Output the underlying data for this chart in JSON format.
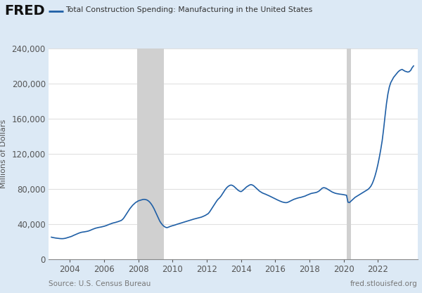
{
  "title": "Total Construction Spending: Manufacturing in the United States",
  "ylabel": "Millions of Dollars",
  "source_left": "Source: U.S. Census Bureau",
  "source_right": "fred.stlouisfed.org",
  "line_color": "#1f5fa6",
  "line_width": 1.2,
  "bg_outer": "#dce9f5",
  "bg_plot": "#ffffff",
  "recession_color": "#d0d0d0",
  "recession_alpha": 1.0,
  "ylim": [
    0,
    240000
  ],
  "yticks": [
    0,
    40000,
    80000,
    120000,
    160000,
    200000,
    240000
  ],
  "recession_bands": [
    [
      2007.917,
      2009.5
    ]
  ],
  "recession_bands2": [
    [
      2020.167,
      2020.417
    ]
  ],
  "xmin": 2002.75,
  "xmax": 2024.33,
  "xticks": [
    2004,
    2006,
    2008,
    2010,
    2012,
    2014,
    2016,
    2018,
    2020,
    2022
  ],
  "fred_text": "FRED",
  "data": {
    "dates": [
      2002.917,
      2003.0,
      2003.083,
      2003.167,
      2003.25,
      2003.333,
      2003.417,
      2003.5,
      2003.583,
      2003.667,
      2003.75,
      2003.833,
      2003.917,
      2004.0,
      2004.083,
      2004.167,
      2004.25,
      2004.333,
      2004.417,
      2004.5,
      2004.583,
      2004.667,
      2004.75,
      2004.833,
      2004.917,
      2005.0,
      2005.083,
      2005.167,
      2005.25,
      2005.333,
      2005.417,
      2005.5,
      2005.583,
      2005.667,
      2005.75,
      2005.833,
      2005.917,
      2006.0,
      2006.083,
      2006.167,
      2006.25,
      2006.333,
      2006.417,
      2006.5,
      2006.583,
      2006.667,
      2006.75,
      2006.833,
      2006.917,
      2007.0,
      2007.083,
      2007.167,
      2007.25,
      2007.333,
      2007.417,
      2007.5,
      2007.583,
      2007.667,
      2007.75,
      2007.833,
      2007.917,
      2008.0,
      2008.083,
      2008.167,
      2008.25,
      2008.333,
      2008.417,
      2008.5,
      2008.583,
      2008.667,
      2008.75,
      2008.833,
      2008.917,
      2009.0,
      2009.083,
      2009.167,
      2009.25,
      2009.333,
      2009.417,
      2009.5,
      2009.583,
      2009.667,
      2009.75,
      2009.833,
      2009.917,
      2010.0,
      2010.083,
      2010.167,
      2010.25,
      2010.333,
      2010.417,
      2010.5,
      2010.583,
      2010.667,
      2010.75,
      2010.833,
      2010.917,
      2011.0,
      2011.083,
      2011.167,
      2011.25,
      2011.333,
      2011.417,
      2011.5,
      2011.583,
      2011.667,
      2011.75,
      2011.833,
      2011.917,
      2012.0,
      2012.083,
      2012.167,
      2012.25,
      2012.333,
      2012.417,
      2012.5,
      2012.583,
      2012.667,
      2012.75,
      2012.833,
      2012.917,
      2013.0,
      2013.083,
      2013.167,
      2013.25,
      2013.333,
      2013.417,
      2013.5,
      2013.583,
      2013.667,
      2013.75,
      2013.833,
      2013.917,
      2014.0,
      2014.083,
      2014.167,
      2014.25,
      2014.333,
      2014.417,
      2014.5,
      2014.583,
      2014.667,
      2014.75,
      2014.833,
      2014.917,
      2015.0,
      2015.083,
      2015.167,
      2015.25,
      2015.333,
      2015.417,
      2015.5,
      2015.583,
      2015.667,
      2015.75,
      2015.833,
      2015.917,
      2016.0,
      2016.083,
      2016.167,
      2016.25,
      2016.333,
      2016.417,
      2016.5,
      2016.583,
      2016.667,
      2016.75,
      2016.833,
      2016.917,
      2017.0,
      2017.083,
      2017.167,
      2017.25,
      2017.333,
      2017.417,
      2017.5,
      2017.583,
      2017.667,
      2017.75,
      2017.833,
      2017.917,
      2018.0,
      2018.083,
      2018.167,
      2018.25,
      2018.333,
      2018.417,
      2018.5,
      2018.583,
      2018.667,
      2018.75,
      2018.833,
      2018.917,
      2019.0,
      2019.083,
      2019.167,
      2019.25,
      2019.333,
      2019.417,
      2019.5,
      2019.583,
      2019.667,
      2019.75,
      2019.833,
      2019.917,
      2020.0,
      2020.083,
      2020.167,
      2020.25,
      2020.333,
      2020.417,
      2020.5,
      2020.583,
      2020.667,
      2020.75,
      2020.833,
      2020.917,
      2021.0,
      2021.083,
      2021.167,
      2021.25,
      2021.333,
      2021.417,
      2021.5,
      2021.583,
      2021.667,
      2021.75,
      2021.833,
      2021.917,
      2022.0,
      2022.083,
      2022.167,
      2022.25,
      2022.333,
      2022.417,
      2022.5,
      2022.583,
      2022.667,
      2022.75,
      2022.833,
      2022.917,
      2023.0,
      2023.083,
      2023.167,
      2023.25,
      2023.333,
      2023.417,
      2023.5,
      2023.583,
      2023.667,
      2023.75,
      2023.833,
      2023.917,
      2024.0,
      2024.083
    ],
    "values": [
      25200,
      24800,
      24500,
      24200,
      24000,
      23800,
      23600,
      23500,
      23500,
      23700,
      24000,
      24500,
      25000,
      25500,
      26000,
      26800,
      27500,
      28200,
      29000,
      29600,
      30200,
      30700,
      31000,
      31200,
      31500,
      31800,
      32200,
      32800,
      33500,
      34200,
      34800,
      35400,
      35800,
      36200,
      36500,
      36800,
      37200,
      37600,
      38100,
      38700,
      39400,
      40000,
      40600,
      41200,
      41600,
      42000,
      42500,
      43000,
      43600,
      44200,
      45500,
      47500,
      50000,
      52500,
      55000,
      57500,
      59500,
      61500,
      63000,
      64500,
      65500,
      66500,
      67000,
      67500,
      68000,
      68200,
      68000,
      67500,
      66500,
      65000,
      63000,
      60500,
      57500,
      54000,
      50500,
      47000,
      43500,
      41000,
      39000,
      37500,
      36500,
      36000,
      36500,
      37200,
      37800,
      38300,
      38700,
      39200,
      39800,
      40300,
      40800,
      41300,
      41800,
      42300,
      42800,
      43300,
      43800,
      44300,
      44800,
      45300,
      45800,
      46200,
      46600,
      47000,
      47400,
      47900,
      48500,
      49200,
      50000,
      51000,
      52000,
      54000,
      56500,
      59000,
      61500,
      64000,
      66500,
      68500,
      70000,
      72000,
      74500,
      77000,
      79500,
      81500,
      83000,
      84000,
      84500,
      84000,
      83000,
      81500,
      80000,
      78500,
      77500,
      77000,
      78000,
      79500,
      81000,
      82500,
      83500,
      84500,
      85000,
      84500,
      83500,
      82000,
      80500,
      79000,
      77500,
      76500,
      75500,
      74800,
      74200,
      73500,
      72800,
      72000,
      71200,
      70400,
      69600,
      68800,
      68000,
      67200,
      66500,
      65800,
      65200,
      64800,
      64500,
      64500,
      65000,
      65800,
      66700,
      67500,
      68200,
      68800,
      69300,
      69800,
      70200,
      70500,
      71000,
      71500,
      72000,
      72800,
      73500,
      74200,
      74800,
      75200,
      75500,
      75800,
      76200,
      77000,
      78000,
      79500,
      81000,
      81500,
      81200,
      80500,
      79500,
      78500,
      77500,
      76500,
      75800,
      75200,
      74800,
      74500,
      74200,
      74000,
      73800,
      73500,
      73200,
      72800,
      65000,
      64500,
      66000,
      67500,
      69000,
      70500,
      71500,
      72500,
      73500,
      74500,
      75500,
      76500,
      77500,
      78500,
      79500,
      81000,
      83000,
      86000,
      90000,
      95000,
      101000,
      108000,
      116000,
      125000,
      135000,
      148000,
      163000,
      177000,
      188000,
      196000,
      201000,
      204000,
      207000,
      209000,
      211000,
      213000,
      214500,
      215500,
      216000,
      215000,
      214000,
      213500,
      213000,
      213500,
      215000,
      218000,
      220000
    ]
  }
}
